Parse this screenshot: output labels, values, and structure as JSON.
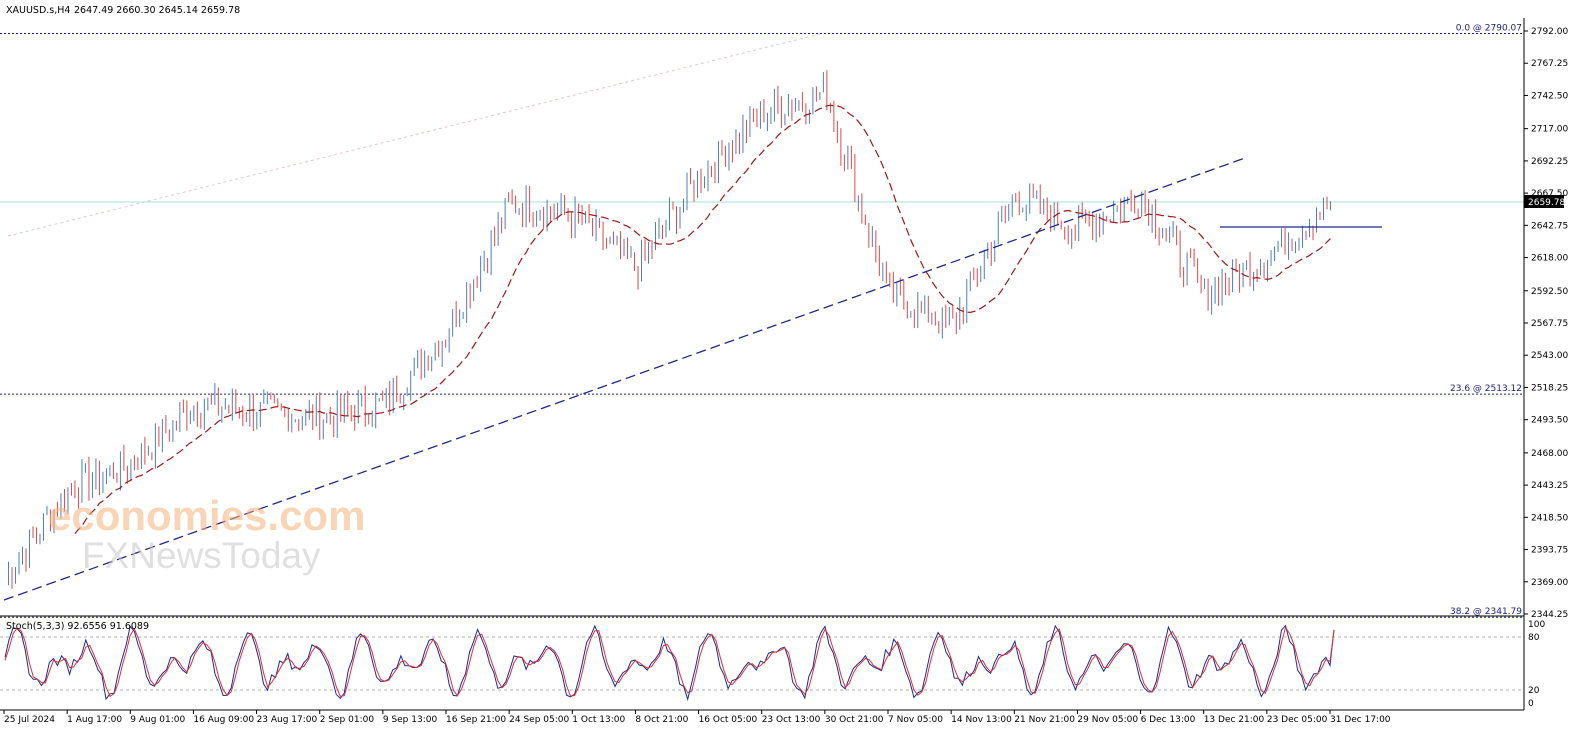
{
  "header": {
    "symbol": "XAUUSD.s,H4",
    "ohlc": "2647.49 2660.30 2645.14 2659.78"
  },
  "watermark": {
    "brand": "economies.com",
    "brand_sub": "FXNewsToday"
  },
  "price_axis": {
    "ticks": [
      "2792.00",
      "2767.25",
      "2742.50",
      "2717.00",
      "2692.25",
      "2667.50",
      "2642.75",
      "2618.00",
      "2592.50",
      "2567.75",
      "2543.00",
      "2518.25",
      "2493.50",
      "2468.00",
      "2443.25",
      "2418.50",
      "2393.75",
      "2369.00",
      "2344.25"
    ]
  },
  "current_price_label": "2659.78",
  "fibonacci": [
    {
      "label": "0.0 @ 2790.07",
      "value": 2790.07
    },
    {
      "label": "23.6 @ 2513.12",
      "value": 2513.12
    },
    {
      "label": "38.2 @ 2341.79",
      "value": 2341.79
    }
  ],
  "time_axis": {
    "labels": [
      "25 Jul 2024",
      "1 Aug 17:00",
      "9 Aug 01:00",
      "16 Aug 09:00",
      "23 Aug 17:00",
      "2 Sep 01:00",
      "9 Sep 13:00",
      "16 Sep 21:00",
      "24 Sep 05:00",
      "1 Oct 13:00",
      "8 Oct 21:00",
      "16 Oct 05:00",
      "23 Oct 13:00",
      "30 Oct 21:00",
      "7 Nov 05:00",
      "14 Nov 13:00",
      "21 Nov 21:00",
      "29 Nov 05:00",
      "6 Dec 13:00",
      "13 Dec 21:00",
      "23 Dec 05:00",
      "31 Dec 17:00"
    ]
  },
  "stoch": {
    "label": "Stoch(5,3,3) 92.6556 91.6089",
    "main": 92.6556,
    "signal": 91.6089,
    "levels": [
      "100",
      "80",
      "20",
      "0"
    ]
  },
  "colors": {
    "bull": "#4a7fc0",
    "bear": "#e04848",
    "ma": "#a01818",
    "trendline": "#1f2a8a",
    "fib": "#1a237e",
    "price_line": "#a8dede"
  },
  "chart_data": {
    "type": "candlestick",
    "symbol": "XAUUSD.s",
    "timeframe": "H4",
    "last_ohlc": {
      "open": 2647.49,
      "high": 2660.3,
      "low": 2645.14,
      "close": 2659.78
    },
    "x": [
      "25 Jul 2024",
      "1 Aug 17:00",
      "9 Aug 01:00",
      "16 Aug 09:00",
      "23 Aug 17:00",
      "2 Sep 01:00",
      "9 Sep 13:00",
      "16 Sep 21:00",
      "24 Sep 05:00",
      "1 Oct 13:00",
      "8 Oct 21:00",
      "16 Oct 05:00",
      "23 Oct 13:00",
      "30 Oct 21:00",
      "7 Nov 05:00",
      "14 Nov 13:00",
      "21 Nov 21:00",
      "29 Nov 05:00",
      "6 Dec 13:00",
      "13 Dec 21:00",
      "23 Dec 05:00",
      "31 Dec 17:00"
    ],
    "series": [
      {
        "values": [
          2372,
          2440,
          2460,
          2505,
          2500,
          2495,
          2505,
          2560,
          2660,
          2650,
          2610,
          2680,
          2730,
          2745,
          2590,
          2565,
          2665,
          2640,
          2665,
          2590,
          2620,
          2659.78
        ]
      }
    ],
    "ylim": [
      2340,
      2800
    ],
    "fib_levels": [
      2790.07,
      2513.12,
      2341.79
    ],
    "stochastic": {
      "k": 92.6556,
      "d": 91.6089,
      "levels": [
        20,
        80
      ]
    }
  }
}
